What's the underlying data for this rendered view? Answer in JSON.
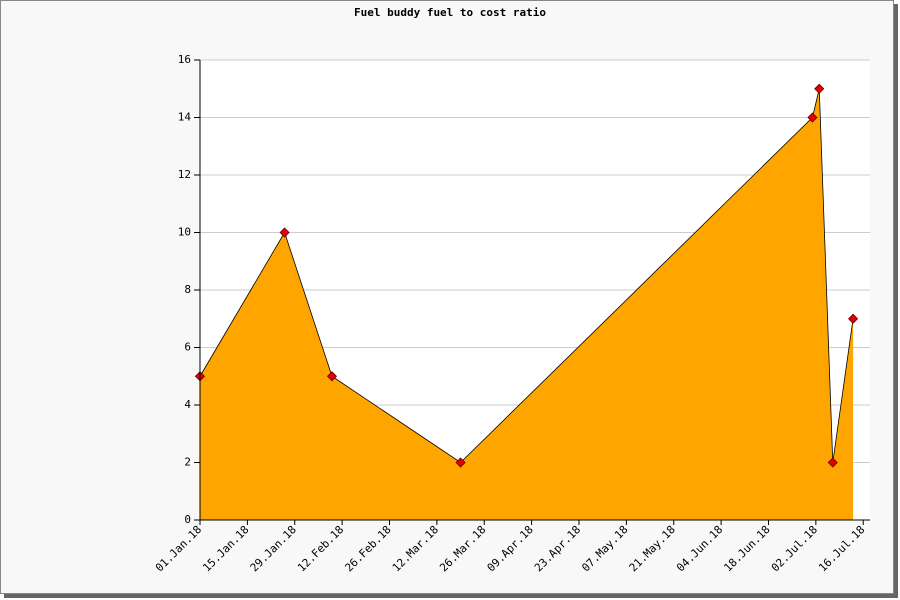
{
  "chart_data": {
    "type": "area",
    "title": "Fuel buddy fuel to cost ratio",
    "x": [
      "2018-01-01",
      "2018-01-26",
      "2018-02-09",
      "2018-03-19",
      "2018-07-01",
      "2018-07-03",
      "2018-07-07",
      "2018-07-13"
    ],
    "values": [
      5,
      10,
      5,
      2,
      14,
      15,
      2,
      7
    ],
    "color": "#ffa500",
    "marker_color": "#e00000",
    "xlim": [
      "2018-01-01",
      "2018-07-18"
    ],
    "xticks": [
      {
        "value": "2018-01-01",
        "label": "01.Jan.18"
      },
      {
        "value": "2018-01-15",
        "label": "15.Jan.18"
      },
      {
        "value": "2018-01-29",
        "label": "29.Jan.18"
      },
      {
        "value": "2018-02-12",
        "label": "12.Feb.18"
      },
      {
        "value": "2018-02-26",
        "label": "26.Feb.18"
      },
      {
        "value": "2018-03-12",
        "label": "12.Mar.18"
      },
      {
        "value": "2018-03-26",
        "label": "26.Mar.18"
      },
      {
        "value": "2018-04-09",
        "label": "09.Apr.18"
      },
      {
        "value": "2018-04-23",
        "label": "23.Apr.18"
      },
      {
        "value": "2018-05-07",
        "label": "07.May.18"
      },
      {
        "value": "2018-05-21",
        "label": "21.May.18"
      },
      {
        "value": "2018-06-04",
        "label": "04.Jun.18"
      },
      {
        "value": "2018-06-18",
        "label": "18.Jun.18"
      },
      {
        "value": "2018-07-02",
        "label": "02.Jul.18"
      },
      {
        "value": "2018-07-16",
        "label": "16.Jul.18"
      }
    ],
    "ylim": [
      0,
      16
    ],
    "yticks": [
      0,
      2,
      4,
      6,
      8,
      10,
      12,
      14,
      16
    ],
    "grid": true
  }
}
